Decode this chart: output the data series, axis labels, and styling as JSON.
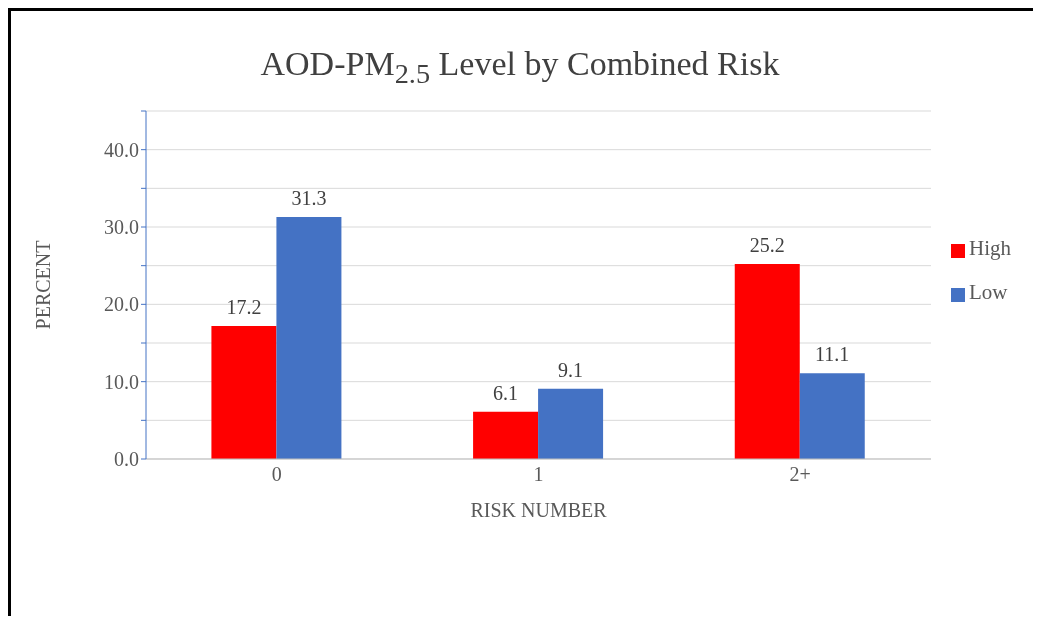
{
  "chart_data": {
    "type": "bar",
    "title": "AOD-PM$_{2.5}$ Level by Combined Risk",
    "xlabel": "RISK NUMBER",
    "ylabel": "PERCENT",
    "categories": [
      "0",
      "1",
      "2+"
    ],
    "series": [
      {
        "name": "High",
        "color": "#ff0000",
        "values": [
          17.2,
          6.1,
          25.2
        ]
      },
      {
        "name": "Low",
        "color": "#4472c4",
        "values": [
          31.3,
          9.1,
          11.1
        ]
      }
    ],
    "ylim": [
      0,
      45
    ],
    "yticks": [
      {
        "value": 0,
        "label": "0.0"
      },
      {
        "value": 5,
        "label": null
      },
      {
        "value": 10,
        "label": "10.0"
      },
      {
        "value": 15,
        "label": null
      },
      {
        "value": 20,
        "label": "20.0"
      },
      {
        "value": 25,
        "label": null
      },
      {
        "value": 30,
        "label": "30.0"
      },
      {
        "value": 35,
        "label": null
      },
      {
        "value": 40,
        "label": "40.0"
      },
      {
        "value": 45,
        "label": null
      }
    ],
    "grid": "y",
    "legend": "right",
    "data_labels": true
  }
}
